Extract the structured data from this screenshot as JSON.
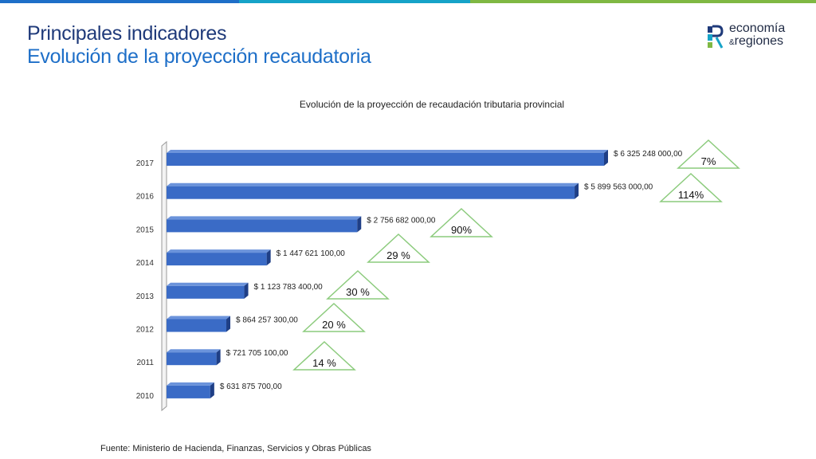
{
  "header": {
    "title": "Principales indicadores",
    "subtitle": "Evolución de la proyección recaudatoria"
  },
  "logo": {
    "line1": "economía",
    "amp": "&",
    "line2": "regiones"
  },
  "colors": {
    "title_dark": "#1f3a7a",
    "title_blue": "#1e6fc8",
    "bar_fill": "#3a6bc6",
    "bar_top": "#6b93db",
    "bar_dark": "#1f3f86",
    "triangle_stroke": "#8ccb7d",
    "topbar": [
      "#1e6fc8",
      "#16a3c8",
      "#2c8fd0",
      "#7fb843"
    ]
  },
  "chart_data": {
    "type": "bar",
    "orientation": "horizontal",
    "title": "Evolución de la proyección de recaudación tributaria provincial",
    "categories": [
      "2010",
      "2011",
      "2012",
      "2013",
      "2014",
      "2015",
      "2016",
      "2017"
    ],
    "values": [
      631875700,
      721705100,
      864257300,
      1123783400,
      1447621100,
      2756682000,
      5899563000,
      6325248000
    ],
    "value_labels": [
      "$ 631 875 700,00",
      "$ 721 705 100,00",
      "$ 864 257 300,00",
      "$ 1 123 783 400,00",
      "$ 1 447 621 100,00",
      "$ 2 756 682 000,00",
      "$ 5 899 563 000,00",
      "$ 6 325 248 000,00"
    ],
    "growth_labels": [
      "",
      "14 %",
      "20 %",
      "30 %",
      "29 %",
      "90%",
      "114%",
      "7%"
    ],
    "xlim": [
      0,
      6700000000
    ],
    "grid": false
  },
  "footer": {
    "source": "Fuente: Ministerio de Hacienda, Finanzas, Servicios y Obras Públicas"
  }
}
